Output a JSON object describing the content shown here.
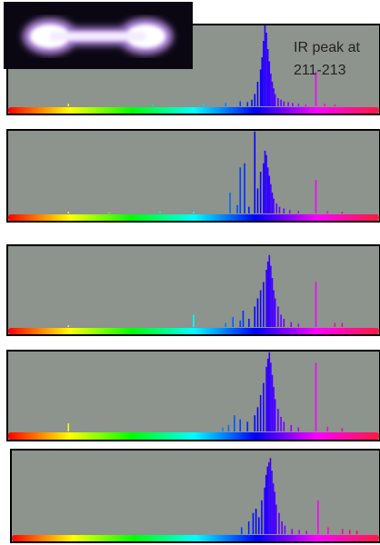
{
  "chart_data": [
    {
      "type": "bar",
      "annotation": "IR peak at 211-213",
      "xlim": [
        0,
        256
      ],
      "ylim": [
        0,
        100
      ],
      "colormap": "hue",
      "x": [
        42,
        100,
        135,
        150,
        160,
        165,
        168,
        170,
        172,
        174,
        175,
        176,
        177,
        178,
        179,
        180,
        181,
        182,
        183,
        184,
        186,
        188,
        190,
        193,
        196,
        200,
        205,
        212,
        218,
        225
      ],
      "values": [
        3,
        2,
        3,
        4,
        6,
        5,
        8,
        15,
        30,
        45,
        60,
        80,
        100,
        90,
        70,
        55,
        40,
        30,
        22,
        15,
        10,
        8,
        6,
        5,
        4,
        3,
        2,
        42,
        3,
        2
      ]
    },
    {
      "type": "bar",
      "xlim": [
        0,
        256
      ],
      "ylim": [
        0,
        100
      ],
      "colormap": "hue",
      "x": [
        42,
        70,
        105,
        128,
        153,
        158,
        160,
        163,
        166,
        170,
        172,
        174,
        176,
        177,
        178,
        179,
        180,
        181,
        182,
        183,
        185,
        187,
        190,
        194,
        200,
        212,
        220,
        230
      ],
      "values": [
        2,
        2,
        3,
        2,
        25,
        10,
        55,
        60,
        8,
        98,
        30,
        50,
        60,
        75,
        70,
        55,
        45,
        35,
        25,
        18,
        12,
        8,
        6,
        4,
        3,
        40,
        3,
        2
      ]
    },
    {
      "type": "bar",
      "xlim": [
        0,
        256
      ],
      "ylim": [
        0,
        100
      ],
      "colormap": "hue",
      "x": [
        42,
        128,
        150,
        155,
        160,
        162,
        166,
        170,
        172,
        174,
        176,
        178,
        179,
        180,
        181,
        182,
        183,
        184,
        186,
        188,
        190,
        195,
        200,
        212,
        225,
        230
      ],
      "values": [
        2,
        15,
        5,
        12,
        8,
        20,
        10,
        25,
        35,
        45,
        55,
        70,
        80,
        88,
        75,
        60,
        45,
        35,
        25,
        15,
        10,
        6,
        4,
        55,
        5,
        5
      ]
    },
    {
      "type": "bar",
      "xlim": [
        0,
        256
      ],
      "ylim": [
        0,
        100
      ],
      "colormap": "hue",
      "x": [
        42,
        148,
        152,
        156,
        160,
        165,
        170,
        172,
        174,
        176,
        178,
        179,
        180,
        181,
        182,
        183,
        184,
        186,
        188,
        190,
        195,
        200,
        212,
        220,
        230
      ],
      "values": [
        10,
        5,
        8,
        20,
        15,
        12,
        20,
        30,
        45,
        60,
        80,
        90,
        98,
        85,
        70,
        55,
        40,
        28,
        18,
        12,
        8,
        5,
        85,
        6,
        4
      ]
    },
    {
      "type": "bar",
      "xlim": [
        0,
        256
      ],
      "ylim": [
        0,
        100
      ],
      "colormap": "hue",
      "x": [
        160,
        165,
        168,
        170,
        172,
        174,
        176,
        177,
        178,
        179,
        180,
        181,
        182,
        183,
        184,
        186,
        188,
        190,
        195,
        200,
        205,
        213,
        220,
        230,
        235,
        240
      ],
      "values": [
        8,
        15,
        25,
        30,
        20,
        40,
        55,
        70,
        80,
        85,
        90,
        75,
        60,
        50,
        35,
        25,
        15,
        10,
        6,
        5,
        4,
        40,
        8,
        6,
        5,
        4
      ]
    }
  ]
}
